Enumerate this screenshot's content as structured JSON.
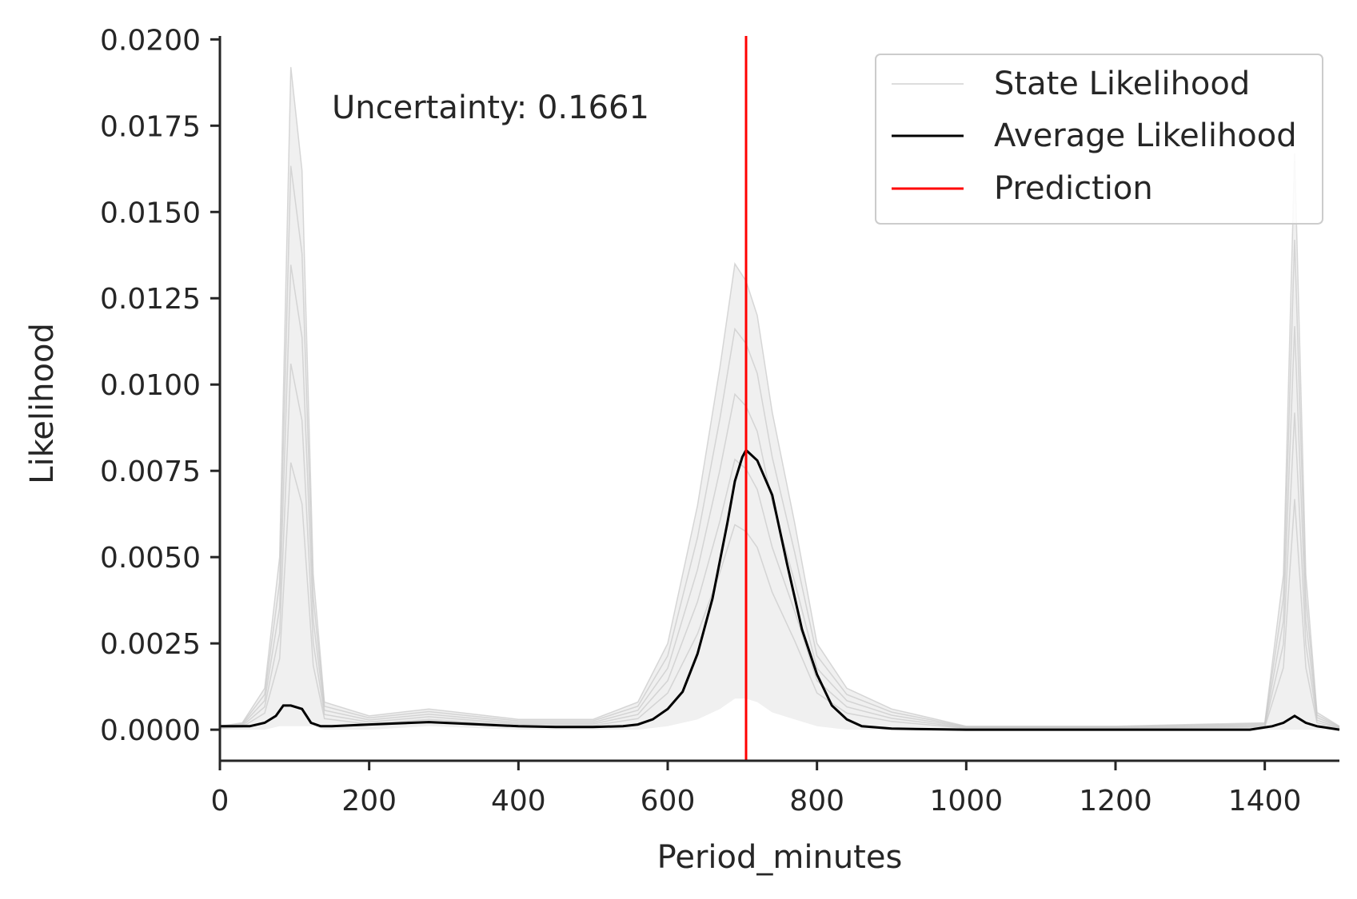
{
  "chart_data": {
    "type": "line",
    "title": "",
    "xlabel": "Period_minutes",
    "ylabel": "Likelihood",
    "xlim": [
      0,
      1500
    ],
    "ylim": [
      -0.0009,
      0.0201
    ],
    "xticks": [
      0,
      200,
      400,
      600,
      800,
      1000,
      1200,
      1400
    ],
    "xtick_labels": [
      "0",
      "200",
      "400",
      "600",
      "800",
      "1000",
      "1200",
      "1400"
    ],
    "yticks": [
      0.0,
      0.0025,
      0.005,
      0.0075,
      0.01,
      0.0125,
      0.015,
      0.0175,
      0.02
    ],
    "ytick_labels": [
      "0.0000",
      "0.0025",
      "0.0050",
      "0.0075",
      "0.0100",
      "0.0125",
      "0.0150",
      "0.0175",
      "0.0200"
    ],
    "grid": false,
    "legend_position": "top-right",
    "annotation": "Uncertainty: 0.1661",
    "colors": {
      "state": "#c8c8c8",
      "average": "#000000",
      "prediction": "#ff0000",
      "axis": "#262626"
    },
    "series": [
      {
        "name": "State Likelihood",
        "style": "band",
        "x": [
          0,
          30,
          60,
          80,
          95,
          110,
          125,
          140,
          200,
          280,
          400,
          500,
          560,
          600,
          640,
          670,
          690,
          705,
          720,
          740,
          770,
          800,
          840,
          900,
          1000,
          1200,
          1400,
          1425,
          1440,
          1455,
          1470,
          1500
        ],
        "upper": [
          0.0001,
          0.0002,
          0.0012,
          0.005,
          0.0192,
          0.0162,
          0.0045,
          0.0008,
          0.0004,
          0.0006,
          0.0003,
          0.0003,
          0.0008,
          0.0025,
          0.0065,
          0.0105,
          0.0135,
          0.013,
          0.012,
          0.0092,
          0.006,
          0.0025,
          0.0012,
          0.0006,
          0.0001,
          0.0001,
          0.0002,
          0.0045,
          0.0167,
          0.0045,
          0.0005,
          0.0001
        ],
        "lower": [
          0.0,
          0.0,
          0.0,
          0.0001,
          0.0001,
          0.0001,
          0.0001,
          0.0,
          0.0,
          0.0001,
          0.0,
          0.0,
          0.0,
          0.0001,
          0.0003,
          0.0006,
          0.0009,
          0.0009,
          0.0008,
          0.0005,
          0.0003,
          0.0001,
          0.0,
          0.0,
          0.0,
          0.0,
          0.0,
          0.0,
          0.0,
          0.0,
          0.0,
          0.0
        ]
      },
      {
        "name": "Average Likelihood",
        "x": [
          0,
          20,
          40,
          60,
          75,
          85,
          95,
          110,
          122,
          135,
          150,
          200,
          280,
          350,
          400,
          450,
          500,
          540,
          560,
          580,
          600,
          620,
          640,
          660,
          680,
          690,
          700,
          705,
          710,
          720,
          740,
          760,
          780,
          800,
          820,
          840,
          860,
          900,
          1000,
          1200,
          1380,
          1410,
          1425,
          1440,
          1455,
          1470,
          1500
        ],
        "values": [
          0.0001,
          0.0001,
          0.0001,
          0.0002,
          0.0004,
          0.0007,
          0.0007,
          0.0006,
          0.0002,
          0.0001,
          0.0001,
          0.00015,
          0.00022,
          0.00015,
          0.0001,
          8e-05,
          8e-05,
          0.0001,
          0.00015,
          0.0003,
          0.0006,
          0.0011,
          0.0022,
          0.0038,
          0.006,
          0.0072,
          0.0079,
          0.0081,
          0.008,
          0.0078,
          0.0068,
          0.0048,
          0.0029,
          0.0016,
          0.0007,
          0.0003,
          0.0001,
          3e-05,
          0.0,
          0.0,
          0.0,
          0.0001,
          0.0002,
          0.0004,
          0.0002,
          0.0001,
          0.0
        ]
      },
      {
        "name": "Prediction",
        "vline_x": 705
      }
    ]
  }
}
